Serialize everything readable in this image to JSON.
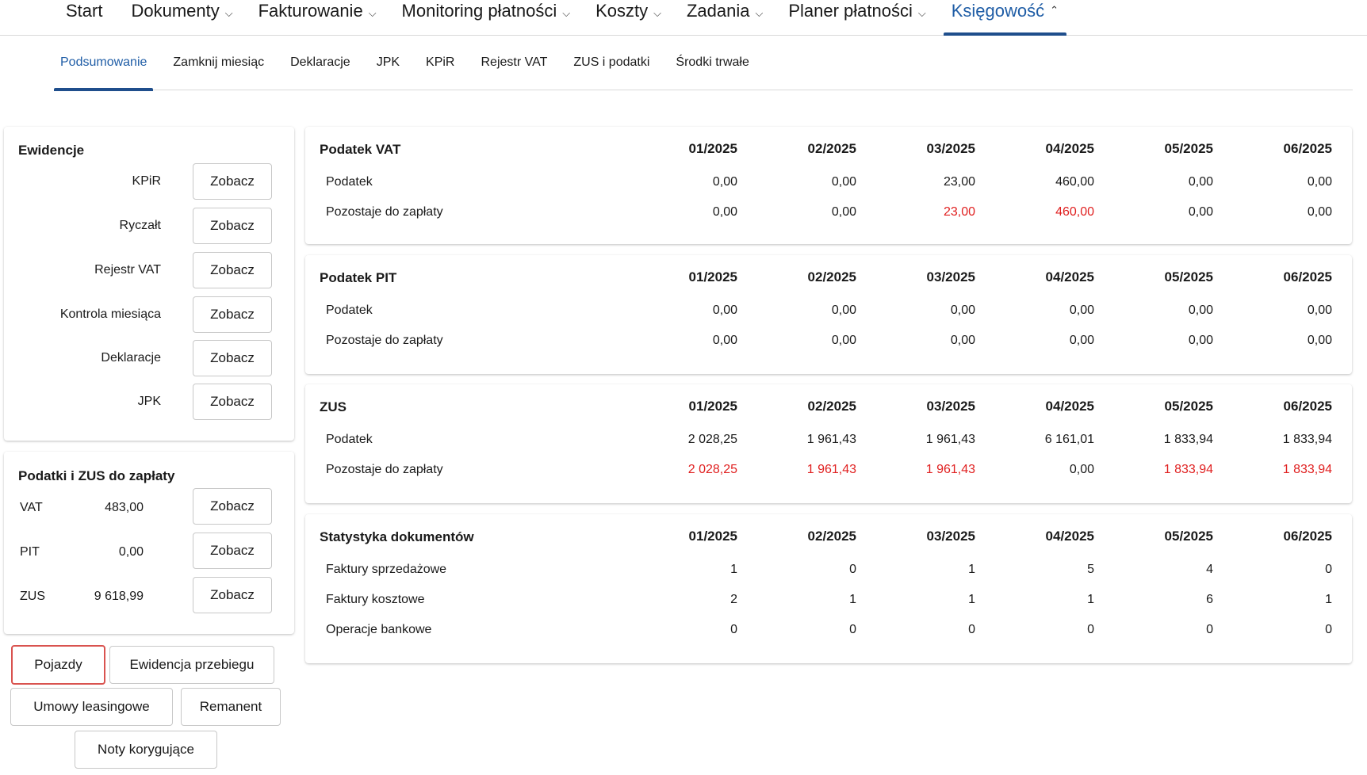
{
  "topnav": {
    "items": [
      {
        "label": "Start",
        "caret": ""
      },
      {
        "label": "Dokumenty",
        "caret": "⌄"
      },
      {
        "label": "Fakturowanie",
        "caret": "⌄"
      },
      {
        "label": "Monitoring płatności",
        "caret": "⌄"
      },
      {
        "label": "Koszty",
        "caret": "⌄"
      },
      {
        "label": "Zadania",
        "caret": "⌄"
      },
      {
        "label": "Planer płatności",
        "caret": "⌄"
      },
      {
        "label": "Księgowość",
        "caret": "⌃"
      }
    ],
    "active_index": 7
  },
  "subnav": {
    "items": [
      "Podsumowanie",
      "Zamknij miesiąc",
      "Deklaracje",
      "JPK",
      "KPiR",
      "Rejestr VAT",
      "ZUS i podatki",
      "Środki trwałe"
    ],
    "active_index": 0
  },
  "ewidencje": {
    "title": "Ewidencje",
    "rows": [
      {
        "label": "KPiR",
        "button": "Zobacz"
      },
      {
        "label": "Ryczałt",
        "button": "Zobacz"
      },
      {
        "label": "Rejestr VAT",
        "button": "Zobacz"
      },
      {
        "label": "Kontrola miesiąca",
        "button": "Zobacz"
      },
      {
        "label": "Deklaracje",
        "button": "Zobacz"
      },
      {
        "label": "JPK",
        "button": "Zobacz"
      }
    ]
  },
  "podatki": {
    "title": "Podatki i ZUS do zapłaty",
    "rows": [
      {
        "name": "VAT",
        "value": "483,00",
        "button": "Zobacz"
      },
      {
        "name": "PIT",
        "value": "0,00",
        "button": "Zobacz"
      },
      {
        "name": "ZUS",
        "value": "9 618,99",
        "button": "Zobacz"
      }
    ]
  },
  "actions": {
    "pojazdy": "Pojazdy",
    "ewidencja_przebiegu": "Ewidencja przebiegu",
    "umowy_leasingowe": "Umowy leasingowe",
    "remanent": "Remanent",
    "noty_korygujace": "Noty korygujące"
  },
  "colors": {
    "accent": "#1f5da6",
    "negative": "#e02020",
    "highlight_border": "#d9534f"
  },
  "tables": [
    {
      "title": "Podatek VAT",
      "months": [
        "01/2025",
        "02/2025",
        "03/2025",
        "04/2025",
        "05/2025",
        "06/2025"
      ],
      "rows": [
        {
          "label": "Podatek",
          "values": [
            "0,00",
            "0,00",
            "23,00",
            "460,00",
            "0,00",
            "0,00"
          ],
          "red": [
            false,
            false,
            false,
            false,
            false,
            false
          ]
        },
        {
          "label": "Pozostaje do zapłaty",
          "values": [
            "0,00",
            "0,00",
            "23,00",
            "460,00",
            "0,00",
            "0,00"
          ],
          "red": [
            false,
            false,
            true,
            true,
            false,
            false
          ]
        }
      ]
    },
    {
      "title": "Podatek PIT",
      "months": [
        "01/2025",
        "02/2025",
        "03/2025",
        "04/2025",
        "05/2025",
        "06/2025"
      ],
      "rows": [
        {
          "label": "Podatek",
          "values": [
            "0,00",
            "0,00",
            "0,00",
            "0,00",
            "0,00",
            "0,00"
          ],
          "red": [
            false,
            false,
            false,
            false,
            false,
            false
          ]
        },
        {
          "label": "Pozostaje do zapłaty",
          "values": [
            "0,00",
            "0,00",
            "0,00",
            "0,00",
            "0,00",
            "0,00"
          ],
          "red": [
            false,
            false,
            false,
            false,
            false,
            false
          ]
        }
      ]
    },
    {
      "title": "ZUS",
      "months": [
        "01/2025",
        "02/2025",
        "03/2025",
        "04/2025",
        "05/2025",
        "06/2025"
      ],
      "rows": [
        {
          "label": "Podatek",
          "values": [
            "2 028,25",
            "1 961,43",
            "1 961,43",
            "6 161,01",
            "1 833,94",
            "1 833,94"
          ],
          "red": [
            false,
            false,
            false,
            false,
            false,
            false
          ]
        },
        {
          "label": "Pozostaje do zapłaty",
          "values": [
            "2 028,25",
            "1 961,43",
            "1 961,43",
            "0,00",
            "1 833,94",
            "1 833,94"
          ],
          "red": [
            true,
            true,
            true,
            false,
            true,
            true
          ]
        }
      ]
    },
    {
      "title": "Statystyka dokumentów",
      "months": [
        "01/2025",
        "02/2025",
        "03/2025",
        "04/2025",
        "05/2025",
        "06/2025"
      ],
      "rows": [
        {
          "label": "Faktury sprzedażowe",
          "values": [
            "1",
            "0",
            "1",
            "5",
            "4",
            "0"
          ],
          "red": [
            false,
            false,
            false,
            false,
            false,
            false
          ]
        },
        {
          "label": "Faktury kosztowe",
          "values": [
            "2",
            "1",
            "1",
            "1",
            "6",
            "1"
          ],
          "red": [
            false,
            false,
            false,
            false,
            false,
            false
          ]
        },
        {
          "label": "Operacje bankowe",
          "values": [
            "0",
            "0",
            "0",
            "0",
            "0",
            "0"
          ],
          "red": [
            false,
            false,
            false,
            false,
            false,
            false
          ]
        }
      ]
    }
  ]
}
